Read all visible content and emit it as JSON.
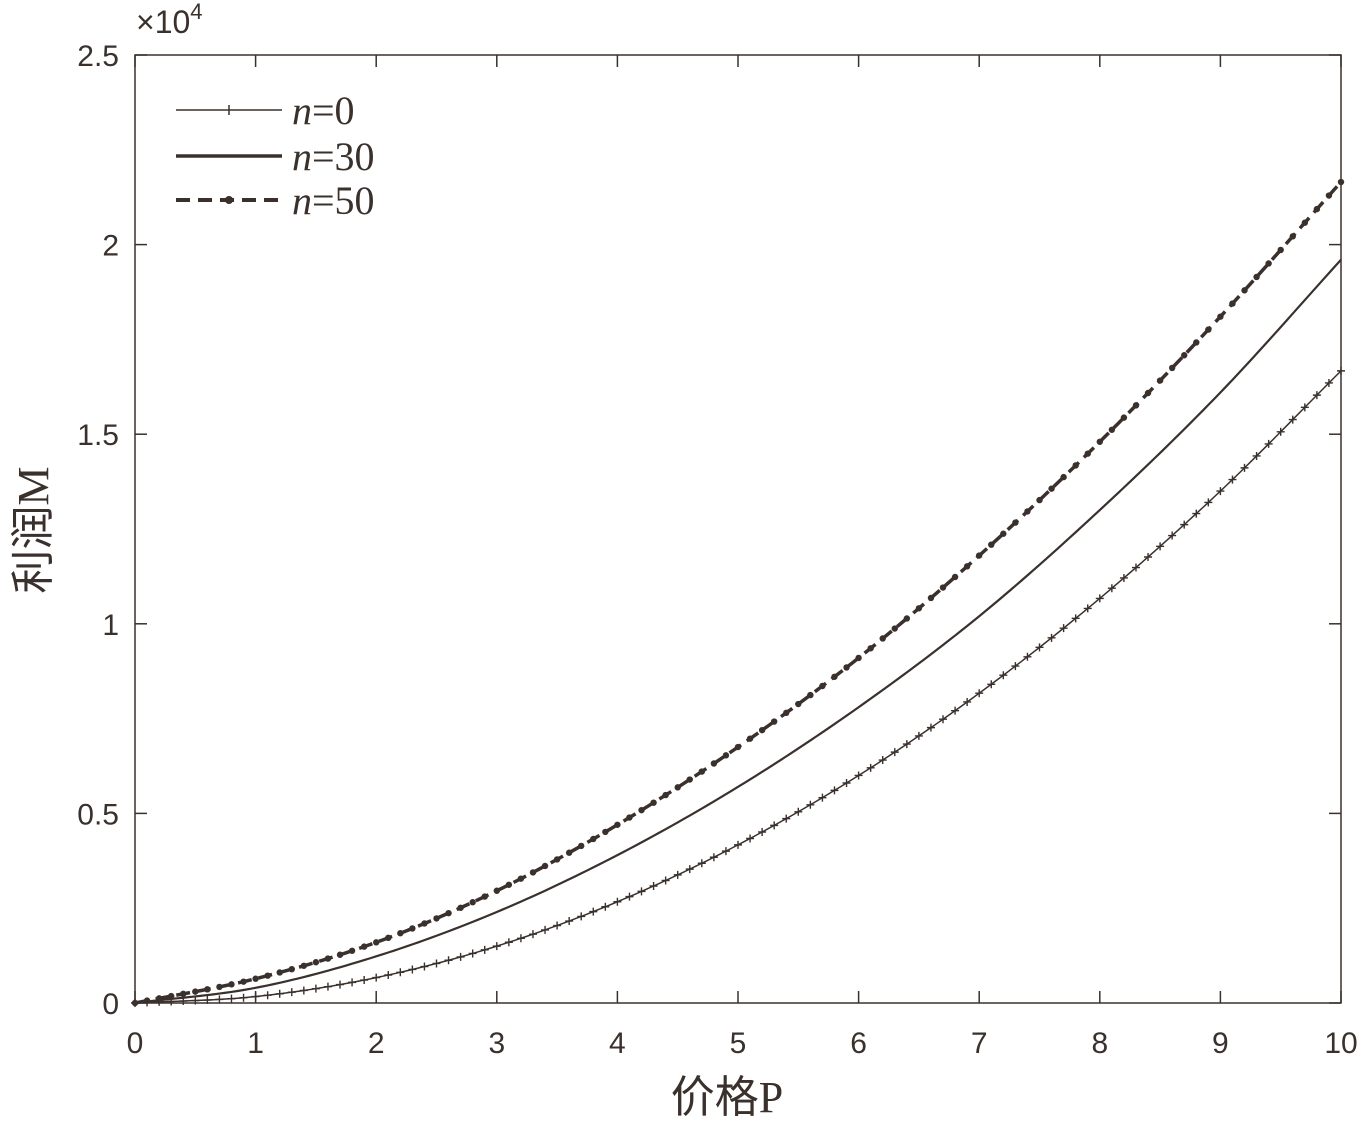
{
  "chart_data": {
    "type": "line",
    "xlabel": "价格P",
    "ylabel": "利润M",
    "y_multiplier": "×10",
    "y_multiplier_exp": "4",
    "xlim": [
      0,
      10
    ],
    "ylim": [
      0,
      2.5
    ],
    "x_ticks": [
      "0",
      "1",
      "2",
      "3",
      "4",
      "5",
      "6",
      "7",
      "8",
      "9",
      "10"
    ],
    "y_ticks": [
      "0",
      "0.5",
      "1",
      "1.5",
      "2",
      "2.5"
    ],
    "x": [
      0,
      1,
      2,
      3,
      4,
      5,
      6,
      7,
      8,
      9,
      10
    ],
    "legend_position": "top-left",
    "grid": false,
    "colors": {
      "line": "#3a302c",
      "axis": "#3a302c"
    },
    "series": [
      {
        "name_var": "n",
        "name_value": "=0",
        "style": "solid-plus",
        "values": [
          0,
          0.017,
          0.067,
          0.15,
          0.267,
          0.417,
          0.6,
          0.817,
          1.067,
          1.35,
          1.667
        ]
      },
      {
        "name_var": "n",
        "name_value": "=30",
        "style": "solid",
        "values": [
          0,
          0.04,
          0.123,
          0.24,
          0.39,
          0.57,
          0.78,
          1.02,
          1.3,
          1.61,
          1.96
        ]
      },
      {
        "name_var": "n",
        "name_value": "=50",
        "style": "dashed-dot",
        "values": [
          0,
          0.064,
          0.16,
          0.296,
          0.47,
          0.675,
          0.91,
          1.18,
          1.48,
          1.81,
          2.165
        ]
      }
    ]
  }
}
